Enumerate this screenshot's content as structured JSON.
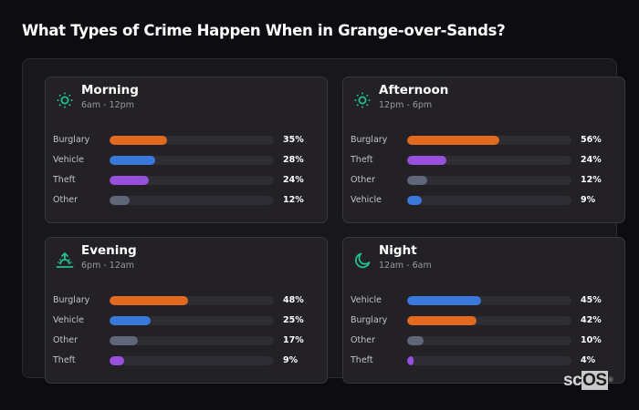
{
  "page": {
    "title": "What Types of Crime Happen When in Grange-over-Sands?",
    "logo": {
      "prefix": "sc",
      "highlight": "OS",
      "mark": "®"
    }
  },
  "colors": {
    "background": "#0d0c11",
    "accent_icon": "#22c08f",
    "Burglary": "#e06a1f",
    "Vehicle": "#3a78dc",
    "Theft": "#9650dc",
    "Other": "#5f6678",
    "track": "#2e2d33"
  },
  "cards": [
    {
      "title": "Morning",
      "subtitle": "6am - 12pm",
      "icon": "sun-icon",
      "rows": [
        {
          "label": "Burglary",
          "value": 35,
          "pct": "35%"
        },
        {
          "label": "Vehicle",
          "value": 28,
          "pct": "28%"
        },
        {
          "label": "Theft",
          "value": 24,
          "pct": "24%"
        },
        {
          "label": "Other",
          "value": 12,
          "pct": "12%"
        }
      ]
    },
    {
      "title": "Afternoon",
      "subtitle": "12pm - 6pm",
      "icon": "sun-icon",
      "rows": [
        {
          "label": "Burglary",
          "value": 56,
          "pct": "56%"
        },
        {
          "label": "Theft",
          "value": 24,
          "pct": "24%"
        },
        {
          "label": "Other",
          "value": 12,
          "pct": "12%"
        },
        {
          "label": "Vehicle",
          "value": 9,
          "pct": "9%"
        }
      ]
    },
    {
      "title": "Evening",
      "subtitle": "6pm - 12am",
      "icon": "sunset-icon",
      "rows": [
        {
          "label": "Burglary",
          "value": 48,
          "pct": "48%"
        },
        {
          "label": "Vehicle",
          "value": 25,
          "pct": "25%"
        },
        {
          "label": "Other",
          "value": 17,
          "pct": "17%"
        },
        {
          "label": "Theft",
          "value": 9,
          "pct": "9%"
        }
      ]
    },
    {
      "title": "Night",
      "subtitle": "12am - 6am",
      "icon": "moon-icon",
      "rows": [
        {
          "label": "Vehicle",
          "value": 45,
          "pct": "45%"
        },
        {
          "label": "Burglary",
          "value": 42,
          "pct": "42%"
        },
        {
          "label": "Other",
          "value": 10,
          "pct": "10%"
        },
        {
          "label": "Theft",
          "value": 4,
          "pct": "4%"
        }
      ]
    }
  ],
  "chart_data": [
    {
      "type": "bar",
      "orientation": "horizontal",
      "title": "Morning",
      "subtitle": "6am - 12pm",
      "categories": [
        "Burglary",
        "Vehicle",
        "Theft",
        "Other"
      ],
      "values": [
        35,
        28,
        24,
        12
      ],
      "unit": "%",
      "xlim": [
        0,
        100
      ]
    },
    {
      "type": "bar",
      "orientation": "horizontal",
      "title": "Afternoon",
      "subtitle": "12pm - 6pm",
      "categories": [
        "Burglary",
        "Theft",
        "Other",
        "Vehicle"
      ],
      "values": [
        56,
        24,
        12,
        9
      ],
      "unit": "%",
      "xlim": [
        0,
        100
      ]
    },
    {
      "type": "bar",
      "orientation": "horizontal",
      "title": "Evening",
      "subtitle": "6pm - 12am",
      "categories": [
        "Burglary",
        "Vehicle",
        "Other",
        "Theft"
      ],
      "values": [
        48,
        25,
        17,
        9
      ],
      "unit": "%",
      "xlim": [
        0,
        100
      ]
    },
    {
      "type": "bar",
      "orientation": "horizontal",
      "title": "Night",
      "subtitle": "12am - 6am",
      "categories": [
        "Vehicle",
        "Burglary",
        "Other",
        "Theft"
      ],
      "values": [
        45,
        42,
        10,
        4
      ],
      "unit": "%",
      "xlim": [
        0,
        100
      ]
    }
  ]
}
